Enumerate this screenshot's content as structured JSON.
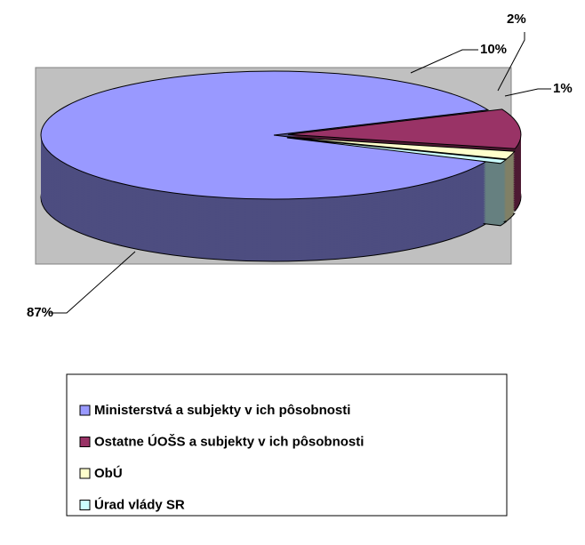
{
  "chart_data": {
    "type": "pie3d",
    "categories": [
      "Ministerstvá a subjekty v ich pôsobnosti",
      "Ostatne ÚOŠS a subjekty v ich pôsobnosti",
      "ObÚ",
      "Úrad vlády SR"
    ],
    "values": [
      87,
      10,
      2,
      1
    ],
    "value_labels": [
      "87%",
      "10%",
      "2%",
      "1%"
    ],
    "colors": [
      "#9999ff",
      "#993366",
      "#ffffcc",
      "#ccffff"
    ]
  }
}
